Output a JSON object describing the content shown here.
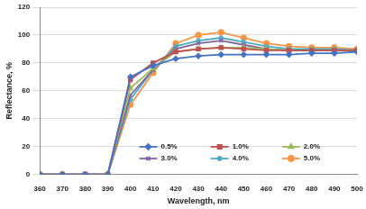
{
  "chart_data": {
    "type": "line",
    "x_label": "Wavelength, nm",
    "y_label": "Reflectance, %",
    "x": [
      360,
      370,
      380,
      390,
      400,
      410,
      420,
      430,
      440,
      450,
      460,
      470,
      480,
      490,
      500
    ],
    "series": [
      {
        "name": "0.5%",
        "color": "#4472c4",
        "marker": "diamond",
        "values": [
          0,
          0,
          0,
          0,
          70,
          78,
          83,
          85,
          86,
          86,
          86,
          86,
          87,
          87,
          88
        ]
      },
      {
        "name": "1.0%",
        "color": "#c0504d",
        "marker": "square",
        "values": [
          0,
          0,
          0,
          0,
          68,
          80,
          88,
          90,
          91,
          90,
          89,
          89,
          89,
          89,
          89
        ]
      },
      {
        "name": "2.0%",
        "color": "#9bbb59",
        "marker": "triangle",
        "values": [
          0,
          0,
          0,
          0,
          62,
          76,
          88,
          90,
          91,
          91,
          90,
          89,
          89,
          89,
          89
        ]
      },
      {
        "name": "3.0%",
        "color": "#8064a2",
        "marker": "cross",
        "values": [
          0,
          0,
          0,
          0,
          57,
          75,
          90,
          94,
          96,
          93,
          90,
          89,
          89,
          89,
          89
        ]
      },
      {
        "name": "4.0%",
        "color": "#4bacc6",
        "marker": "star",
        "values": [
          0,
          0,
          0,
          0,
          54,
          75,
          92,
          96,
          98,
          95,
          92,
          90,
          90,
          90,
          89
        ]
      },
      {
        "name": "5.0%",
        "color": "#f79646",
        "marker": "circle",
        "values": [
          0,
          0,
          0,
          0,
          50,
          73,
          94,
          100,
          102,
          98,
          94,
          92,
          91,
          91,
          90
        ]
      }
    ],
    "xlim": [
      360,
      500
    ],
    "xticks": [
      360,
      370,
      380,
      390,
      400,
      410,
      420,
      430,
      440,
      450,
      460,
      470,
      480,
      490,
      500
    ],
    "ylim": [
      0,
      120
    ],
    "yticks": [
      0,
      20,
      40,
      60,
      80,
      100,
      120
    ],
    "grid": "y",
    "legend": "lower right"
  }
}
